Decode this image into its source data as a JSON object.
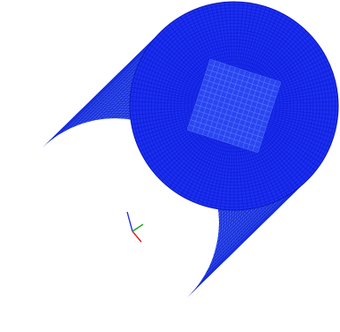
{
  "viewport": {
    "background": "#ffffff"
  },
  "model": {
    "kind": "cylinder-surface-mesh",
    "mesh_color": "#1b2ff0",
    "mesh_fill_color": "#3a55e6",
    "mesh_line_color": "#0a1fd8",
    "cap_line_color": "#0c1ad0",
    "end_cap_refined_square": true
  },
  "axis_triad": {
    "x_color": "#e02020",
    "y_color": "#20a020",
    "z_color": "#2030e0",
    "icon": "axis-triad-icon"
  }
}
